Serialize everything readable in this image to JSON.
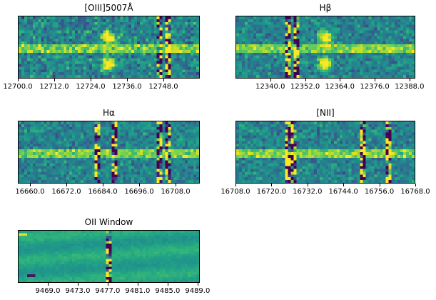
{
  "chart_data": [
    {
      "type": "heatmap",
      "title": "[OIII]5007Å",
      "xlim": [
        12700.0,
        12760.0
      ],
      "xticks": [
        12700.0,
        12712.0,
        12724.0,
        12736.0,
        12748.0
      ],
      "xtick_labels": [
        "12700.0",
        "12712.0",
        "12724.0",
        "12736.0",
        "12748.0"
      ],
      "colormap": "viridis",
      "features": {
        "trace": "horizontal continuum band",
        "emission_center": 12730.0,
        "bad_columns": [
          12747.0,
          12749.5
        ]
      }
    },
    {
      "type": "heatmap",
      "title": "Hβ",
      "xlim": [
        12328.0,
        12390.0
      ],
      "xticks": [
        12340.0,
        12352.0,
        12364.0,
        12376.0,
        12388.0
      ],
      "xtick_labels": [
        "12340.0",
        "12352.0",
        "12364.0",
        "12376.0",
        "12388.0"
      ],
      "colormap": "viridis",
      "features": {
        "trace": "horizontal continuum band",
        "emission_center": 12359.0,
        "bad_columns": [
          12346.0,
          12349.0
        ]
      }
    },
    {
      "type": "heatmap",
      "title": "Hα",
      "xlim": [
        16656.0,
        16716.0
      ],
      "xticks": [
        16660.0,
        16672.0,
        16684.0,
        16696.0,
        16708.0
      ],
      "xtick_labels": [
        "16660.0",
        "16672.0",
        "16684.0",
        "16696.0",
        "16708.0"
      ],
      "colormap": "viridis",
      "features": {
        "trace": "horizontal continuum band",
        "bad_columns": [
          16682.0,
          16687.5,
          16703.0,
          16705.5
        ]
      }
    },
    {
      "type": "heatmap",
      "title": "[NII]",
      "xlim": [
        16708.0,
        16768.0
      ],
      "xticks": [
        16708.0,
        16720.0,
        16732.0,
        16744.0,
        16756.0,
        16768.0
      ],
      "xtick_labels": [
        "16708.0",
        "16720.0",
        "16732.0",
        "16744.0",
        "16756.0",
        "16768.0"
      ],
      "colormap": "viridis",
      "features": {
        "trace": "horizontal continuum band",
        "bad_columns": [
          16725.0,
          16727.0,
          16751.0,
          16759.0
        ]
      }
    },
    {
      "type": "heatmap",
      "title": "OII Window",
      "xlim": [
        9465.0,
        9489.3
      ],
      "xticks": [
        9469.0,
        9473.0,
        9477.0,
        9481.0,
        9485.0,
        9489.0
      ],
      "xtick_labels": [
        "9469.0",
        "9473.0",
        "9477.0",
        "9481.0",
        "9485.0",
        "9489.0"
      ],
      "colormap": "viridis",
      "features": {
        "trace": "smooth background",
        "bad_columns": [
          9477.2
        ]
      }
    }
  ]
}
